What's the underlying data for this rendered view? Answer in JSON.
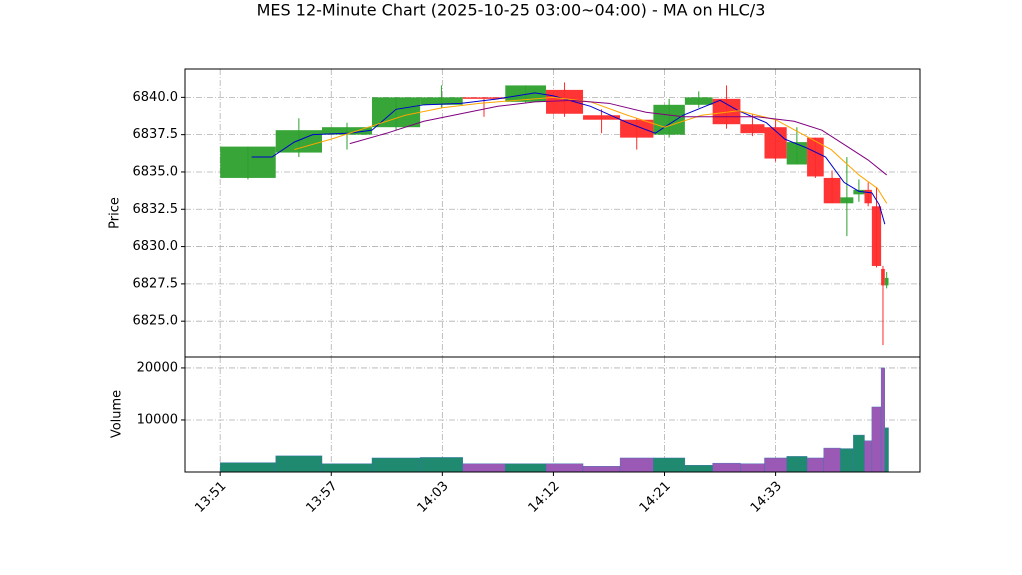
{
  "chart_data": [
    {
      "type": "candlestick",
      "title": "MES 12-Minute Chart (2025-10-25 03:00~04:00) - MA on HLC/3",
      "y_label": "Price",
      "up_color": "#2ca02c",
      "down_color": "#ff2a2a",
      "x": [
        0,
        3.0,
        5.5,
        8.2,
        10.8,
        13.1,
        15.4,
        17.6,
        19.6,
        21.6,
        23.4,
        25.1,
        26.6,
        28.1,
        29.4,
        30.6,
        31.7,
        32.6,
        33.5,
        34.2,
        34.8,
        35.2,
        35.7,
        35.9
      ],
      "open": [
        6834.6,
        6836.3,
        6837.5,
        6838.0,
        6839.5,
        6840.0,
        6839.7,
        6840.5,
        6838.8,
        6838.5,
        6837.5,
        6839.5,
        6839.9,
        6838.2,
        6838.0,
        6835.5,
        6837.3,
        6834.6,
        6832.9,
        6833.5,
        6833.8,
        6832.7,
        6828.5,
        6827.4
      ],
      "high": [
        6836.7,
        6838.6,
        6838.3,
        6840.0,
        6840.8,
        6840.0,
        6840.8,
        6841.0,
        6839.2,
        6838.6,
        6839.9,
        6840.4,
        6840.8,
        6838.9,
        6838.5,
        6838.0,
        6837.3,
        6835.1,
        6836.0,
        6834.5,
        6834.3,
        6834.0,
        6828.7,
        6828.3
      ],
      "low": [
        6834.5,
        6836.0,
        6836.5,
        6837.8,
        6839.3,
        6838.7,
        6839.6,
        6838.7,
        6837.6,
        6836.5,
        6837.3,
        6839.3,
        6837.9,
        6837.4,
        6835.7,
        6835.5,
        6834.6,
        6832.9,
        6830.7,
        6833.0,
        6832.7,
        6828.6,
        6823.4,
        6827.2
      ],
      "close": [
        6836.7,
        6837.8,
        6838.0,
        6840.0,
        6840.0,
        6839.9,
        6840.8,
        6838.9,
        6838.5,
        6837.3,
        6839.5,
        6840.0,
        6838.2,
        6837.6,
        6835.9,
        6837.0,
        6834.7,
        6832.9,
        6833.3,
        6833.8,
        6832.9,
        6828.7,
        6827.4,
        6827.9
      ],
      "lines": [
        {
          "color": "#0000cc",
          "x": [
            1.7,
            2.8,
            4,
            5,
            7,
            8.2,
            9.5,
            11,
            13,
            15,
            17,
            18,
            20,
            22,
            23.5,
            25,
            27,
            28,
            29.5,
            30.5,
            31.7,
            32.7,
            33.7,
            34.5,
            35.2,
            35.6,
            35.9
          ],
          "values": [
            6836,
            6836,
            6837,
            6837.5,
            6837.6,
            6837.8,
            6839.2,
            6839.5,
            6839.6,
            6839.9,
            6840.3,
            6840.1,
            6839.4,
            6838.3,
            6837.6,
            6838.8,
            6839.8,
            6839.1,
            6838.3,
            6837.2,
            6836.6,
            6836,
            6834.3,
            6833.7,
            6833.6,
            6832.8,
            6831.5
          ]
        },
        {
          "color": "#ffa500",
          "x": [
            4,
            6,
            8,
            10,
            12,
            14,
            16,
            18,
            20,
            22,
            24,
            26,
            28,
            30,
            31.5,
            33,
            34.5,
            35.5,
            36
          ],
          "values": [
            6836.5,
            6837.2,
            6838,
            6838.8,
            6839.3,
            6839.6,
            6839.8,
            6840,
            6839.7,
            6838.8,
            6838,
            6838.8,
            6839.1,
            6838.5,
            6837.5,
            6836.5,
            6834.8,
            6833.9,
            6832.9
          ]
        },
        {
          "color": "#800080",
          "x": [
            7,
            9,
            11,
            13,
            15,
            17,
            19,
            21,
            23,
            25,
            27,
            29,
            31,
            32.5,
            34,
            35,
            36
          ],
          "values": [
            6836.9,
            6837.6,
            6838.4,
            6838.9,
            6839.4,
            6839.7,
            6839.8,
            6839.6,
            6839,
            6838.7,
            6838.7,
            6838.7,
            6838.4,
            6837.8,
            6836.6,
            6835.8,
            6834.8
          ]
        }
      ],
      "xlim": [
        -1.9,
        37.8
      ],
      "ylim": [
        6822.6,
        6841.9
      ],
      "yticks": [
        {
          "value": 6825,
          "label": "6825.0"
        },
        {
          "value": 6827.5,
          "label": "6827.5"
        },
        {
          "value": 6830,
          "label": "6830.0"
        },
        {
          "value": 6832.5,
          "label": "6832.5"
        },
        {
          "value": 6835,
          "label": "6835.0"
        },
        {
          "value": 6837.5,
          "label": "6837.5"
        },
        {
          "value": 6840,
          "label": "6840.0"
        }
      ],
      "xticks": [
        {
          "value": 0,
          "label": "13:51"
        },
        {
          "value": 6,
          "label": "13:57"
        },
        {
          "value": 12,
          "label": "14:03"
        },
        {
          "value": 18,
          "label": "14:12"
        },
        {
          "value": 24,
          "label": "14:21"
        },
        {
          "value": 30,
          "label": "14:33"
        }
      ],
      "grid": true
    },
    {
      "type": "bar",
      "y_label": "Volume",
      "up_color": "#1f8a70",
      "down_color": "#9b59b6",
      "values": [
        1800,
        3100,
        1600,
        2700,
        2800,
        1600,
        1600,
        1600,
        1100,
        2700,
        2700,
        1300,
        1700,
        1600,
        2700,
        3000,
        2700,
        4600,
        4500,
        7100,
        6000,
        12500,
        20000,
        8500
      ],
      "ylim": [
        0,
        22100
      ],
      "yticks": [
        10000,
        20000
      ],
      "grid": true
    }
  ]
}
